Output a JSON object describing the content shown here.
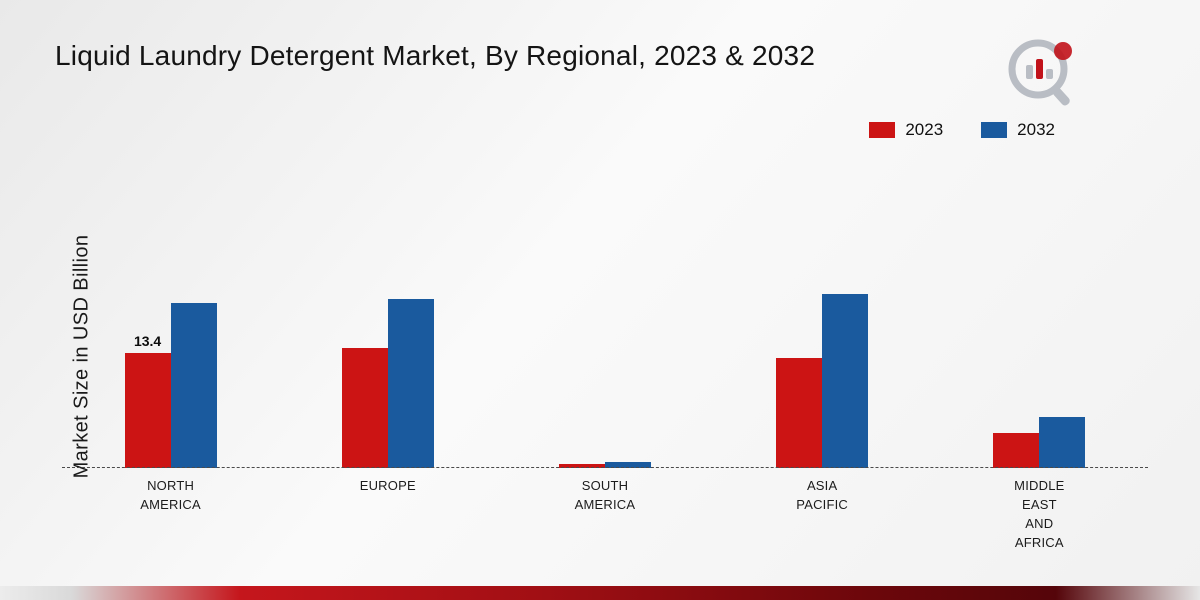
{
  "header": {
    "title": "Liquid Laundry Detergent Market, By Regional, 2023 & 2032"
  },
  "chart_data": {
    "type": "bar",
    "title": "Liquid Laundry Detergent Market, By Regional, 2023 & 2032",
    "ylabel": "Market Size in USD Billion",
    "ylim": [
      0,
      24
    ],
    "grid": false,
    "legend_position": "top-right",
    "categories": [
      [
        "NORTH",
        "AMERICA"
      ],
      [
        "EUROPE"
      ],
      [
        "SOUTH",
        "AMERICA"
      ],
      [
        "ASIA",
        "PACIFIC"
      ],
      [
        "MIDDLE",
        "EAST",
        "AND",
        "AFRICA"
      ]
    ],
    "series": [
      {
        "name": "2023",
        "color": "#cc1414",
        "values": [
          13.4,
          13.9,
          0.5,
          12.8,
          4.1
        ],
        "labels": [
          "13.4",
          "",
          "",
          "",
          ""
        ]
      },
      {
        "name": "2032",
        "color": "#1a5a9e",
        "values": [
          19.2,
          19.7,
          0.7,
          20.2,
          5.9
        ],
        "labels": [
          "",
          "",
          "",
          "",
          ""
        ]
      }
    ]
  },
  "colors": {
    "series_2023": "#cc1414",
    "series_2032": "#1a5a9e",
    "footer_red": "#a10f14",
    "logo_gray": "#b9bdc4",
    "logo_red": "#c1121a"
  },
  "icons": {
    "logo": "bar-chart-magnifier-logo"
  }
}
